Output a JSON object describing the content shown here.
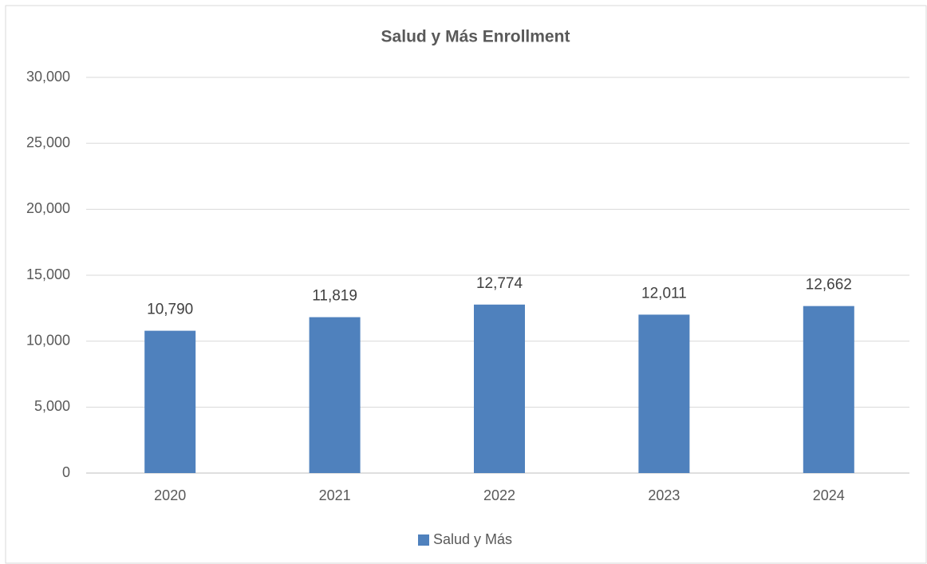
{
  "chart_data": {
    "type": "bar",
    "title": "Salud y Más Enrollment",
    "categories": [
      "2020",
      "2021",
      "2022",
      "2023",
      "2024"
    ],
    "series": [
      {
        "name": "Salud y Más",
        "color": "#4f81bd",
        "values": [
          10790,
          11819,
          12774,
          12011,
          12662
        ],
        "value_labels": [
          "10,790",
          "11,819",
          "12,774",
          "12,011",
          "12,662"
        ]
      }
    ],
    "ylim": [
      0,
      30000
    ],
    "yticks": [
      0,
      {
        "value": 5000,
        "label": "5,000"
      },
      {
        "value": 10000,
        "label": "10,000"
      },
      {
        "value": 15000,
        "label": "15,000"
      },
      {
        "value": 20000,
        "label": "20,000"
      },
      {
        "value": 25000,
        "label": "25,000"
      },
      {
        "value": 30000,
        "label": "30,000"
      }
    ],
    "grid": true,
    "legend": "bottom"
  }
}
